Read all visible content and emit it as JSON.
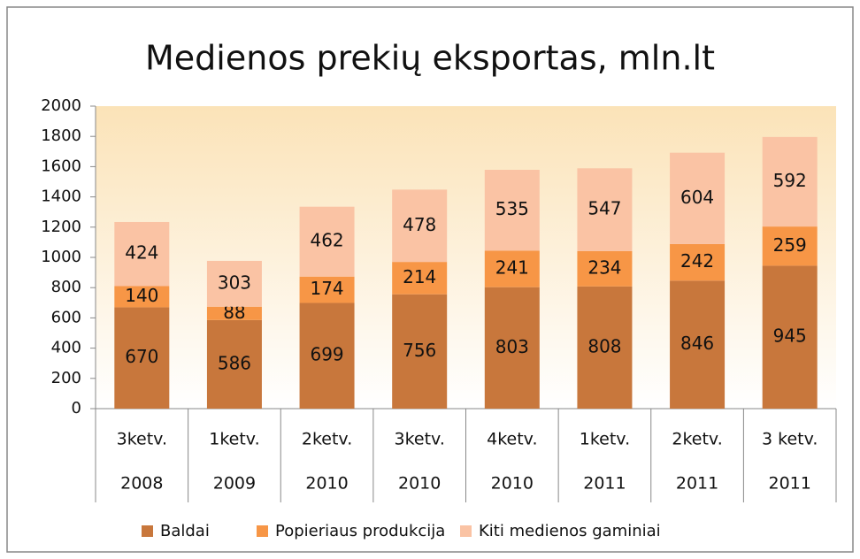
{
  "chart_data": {
    "type": "stacked_bar",
    "title": "Medienos prekių eksportas, mln.lt",
    "categories": [
      [
        "3ketv.",
        "2008"
      ],
      [
        "1ketv.",
        "2009"
      ],
      [
        "2ketv.",
        "2010"
      ],
      [
        "3ketv.",
        "2010"
      ],
      [
        "4ketv.",
        "2010"
      ],
      [
        "1ketv.",
        "2011"
      ],
      [
        "2ketv.",
        "2011"
      ],
      [
        "3 ketv.",
        "2011"
      ]
    ],
    "series": [
      {
        "name": "Baldai",
        "color": "#c8773c",
        "values": [
          670,
          586,
          699,
          756,
          803,
          808,
          846,
          945
        ]
      },
      {
        "name": "Popieriaus produkcija",
        "color": "#f79646",
        "values": [
          140,
          88,
          174,
          214,
          241,
          234,
          242,
          259
        ]
      },
      {
        "name": "Kiti medienos gaminiai",
        "color": "#fac3a4",
        "values": [
          424,
          303,
          462,
          478,
          535,
          547,
          604,
          592
        ]
      }
    ],
    "ylim": [
      0,
      2000
    ],
    "yticks": [
      0,
      200,
      400,
      600,
      800,
      1000,
      1200,
      1400,
      1600,
      1800,
      2000
    ]
  }
}
